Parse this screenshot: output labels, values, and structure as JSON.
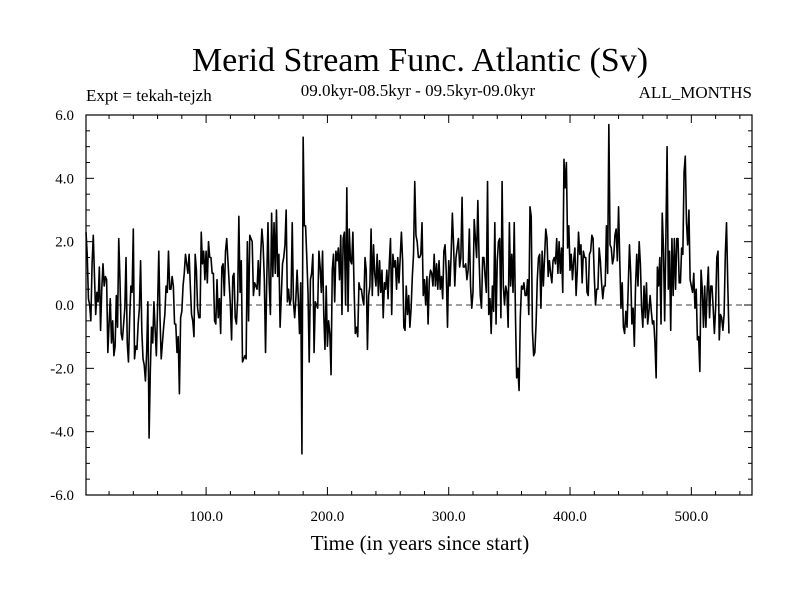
{
  "chart_data": {
    "type": "line",
    "title": "Merid Stream Func. Atlantic (Sv)",
    "subtitle": "09.0kyr-08.5kyr - 09.5kyr-09.0kyr",
    "left_label": "Expt = tekah-tejzh",
    "right_label": "ALL_MONTHS",
    "xlabel": "Time (in years since start)",
    "ylabel": "",
    "xlim": [
      1,
      550
    ],
    "ylim": [
      -6.0,
      6.0
    ],
    "x_ticks": [
      100,
      200,
      300,
      400,
      500
    ],
    "x_tick_labels": [
      "100.0",
      "200.0",
      "300.0",
      "400.0",
      "500.0"
    ],
    "y_ticks": [
      -6,
      -4,
      -2,
      0,
      2,
      4,
      6
    ],
    "y_tick_labels": [
      "-6.0",
      "-4.0",
      "-2.0",
      "0.0",
      "2.0",
      "4.0",
      "6.0"
    ],
    "x_minor_step": 20,
    "y_minor_step": 0.5,
    "zero_line": "dashed",
    "series": [
      {
        "name": "Merid Stream Func. Atlantic",
        "color": "#000000",
        "x_start": 1,
        "x_step": 1,
        "values": [
          2.3,
          1.6,
          0.2,
          0.0,
          -0.5,
          1.3,
          2.2,
          0.9,
          -0.3,
          0.4,
          0.1,
          1.2,
          -0.8,
          0.5,
          1.3,
          0.6,
          0.9,
          0.8,
          -1.5,
          -0.6,
          0.2,
          -1.2,
          -0.5,
          -1.6,
          -1.3,
          0.3,
          -0.7,
          2.1,
          0.8,
          -0.9,
          -1.1,
          -0.6,
          -0.1,
          1.5,
          -1.2,
          -1.8,
          -0.4,
          0.6,
          0.4,
          2.4,
          -1.7,
          -1.3,
          -1.4,
          -0.6,
          -0.1,
          1.4,
          -0.8,
          -1.7,
          -1.9,
          -2.4,
          -1.5,
          0.1,
          -4.2,
          -2.1,
          -0.7,
          -1.2,
          0.1,
          -0.8,
          -1.6,
          -0.1,
          1.7,
          -0.4,
          -1.7,
          -1.2,
          -0.7,
          -0.3,
          0.6,
          0.4,
          1.7,
          0.5,
          0.5,
          0.9,
          0.6,
          -0.6,
          -0.6,
          -1.5,
          -1.0,
          -2.8,
          -0.4,
          -0.2,
          0.6,
          1.0,
          1.6,
          1.3,
          1.0,
          1.6,
          0.6,
          -0.3,
          -0.5,
          -1.0,
          1.6,
          1.1,
          -0.1,
          -0.4,
          -0.4,
          2.3,
          1.3,
          1.7,
          0.8,
          1.7,
          0.7,
          2.0,
          1.5,
          1.5,
          1.0,
          1.0,
          -0.5,
          -0.6,
          0.8,
          -0.4,
          0.2,
          -0.9,
          1.2,
          1.3,
          0.3,
          1.7,
          2.1,
          1.4,
          0.7,
          0.0,
          -1.1,
          0.9,
          1.0,
          -0.4,
          -0.6,
          0.2,
          2.8,
          0.4,
          1.4,
          -1.8,
          -1.7,
          -1.6,
          -1.7,
          2.0,
          -0.5,
          2.2,
          2.1,
          2.0,
          0.3,
          0.7,
          0.6,
          0.5,
          1.4,
          0.3,
          1.6,
          2.4,
          1.9,
          0.8,
          -1.5,
          0.8,
          2.6,
          0.7,
          -0.3,
          2.9,
          0.9,
          2.6,
          1.0,
          3.0,
          0.9,
          1.6,
          -0.7,
          0.3,
          1.3,
          1.5,
          1.9,
          3.0,
          0.1,
          0.5,
          0.0,
          0.2,
          2.6,
          0.1,
          -0.4,
          0.2,
          1.1,
          0.2,
          -0.9,
          0.7,
          -4.7,
          5.3,
          2.5,
          2.5,
          1.5,
          0.4,
          -1.8,
          0.8,
          1.0,
          1.6,
          -1.5,
          0.1,
          0.0,
          -0.1,
          1.7,
          1.2,
          0.4,
          1.7,
          -0.3,
          -1.4,
          0.6,
          -1.3,
          -0.5,
          -0.9,
          -2.2,
          1.1,
          1.6,
          0.1,
          1.7,
          1.4,
          1.8,
          0.8,
          2.2,
          -0.3,
          2.1,
          2.3,
          0.0,
          3.7,
          -0.2,
          2.4,
          1.4,
          1.3,
          2.3,
          0.5,
          -0.9,
          -0.7,
          -1.0,
          0.7,
          0.5,
          0.5,
          0.2,
          0.0,
          1.5,
          1.1,
          -1.4,
          0.3,
          0.6,
          2.4,
          0.3,
          1.9,
          1.0,
          0.6,
          1.6,
          0.3,
          1.4,
          0.4,
          1.1,
          -0.4,
          0.7,
          0.5,
          1.1,
          0.2,
          1.3,
          2.1,
          -0.3,
          1.6,
          1.2,
          1.4,
          0.5,
          1.5,
          0.7,
          1.5,
          2.3,
          1.4,
          -0.7,
          -0.8,
          0.6,
          -0.3,
          0.3,
          -0.7,
          -0.1,
          0.9,
          1.6,
          3.9,
          2.2,
          2.0,
          1.5,
          1.5,
          1.6,
          2.6,
          0.3,
          0.8,
          0.0,
          0.9,
          -0.6,
          0.8,
          1.1,
          1.0,
          0.6,
          1.6,
          0.6,
          1.3,
          0.5,
          1.4,
          0.5,
          0.9,
          0.2,
          1.7,
          1.9,
          1.0,
          -0.7,
          1.4,
          0.6,
          1.6,
          2.9,
          1.9,
          0.6,
          1.5,
          1.8,
          2.1,
          1.2,
          1.5,
          3.4,
          1.2,
          1.2,
          1.3,
          0.8,
          1.1,
          2.4,
          0.6,
          -0.1,
          0.4,
          2.7,
          2.1,
          1.5,
          3.3,
          1.5,
          0.3,
          -0.1,
          1.5,
          1.5,
          0.9,
          0.4,
          3.9,
          -0.3,
          0.2,
          -0.9,
          0.6,
          -0.2,
          2.6,
          -0.6,
          1.4,
          2.0,
          2.1,
          -0.4,
          3.9,
          0.6,
          0.0,
          0.6,
          0.4,
          -0.7,
          2.6,
          0.6,
          1.6,
          0.4,
          2.6,
          -0.3,
          -2.3,
          -2.0,
          -2.7,
          -0.4,
          0.6,
          0.5,
          0.7,
          0.3,
          0.3,
          0.8,
          -0.3,
          3.1,
          2.8,
          -0.8,
          -1.6,
          -1.5,
          -0.6,
          0.8,
          1.5,
          1.6,
          -0.1,
          1.7,
          0.6,
          1.5,
          2.4,
          2.1,
          0.9,
          1.4,
          1.0,
          0.7,
          1.4,
          1.5,
          1.3,
          2.1,
          1.0,
          2.0,
          1.0,
          1.8,
          0.4,
          4.6,
          3.7,
          4.5,
          1.8,
          2.5,
          1.1,
          1.6,
          0.8,
          1.4,
          1.8,
          0.3,
          1.1,
          2.3,
          1.6,
          1.9,
          0.7,
          1.7,
          1.5,
          1.5,
          0.4,
          0.3,
          1.6,
          1.7,
          2.2,
          2.1,
          0.9,
          0.0,
          0.5,
          0.5,
          1.8,
          1.4,
          0.7,
          0.2,
          0.6,
          0.6,
          2.5,
          1.0,
          5.7,
          1.9,
          1.8,
          1.3,
          1.5,
          2.2,
          2.4,
          1.4,
          3.1,
          1.4,
          -0.1,
          0.7,
          -0.7,
          -0.9,
          -0.2,
          -0.7,
          0.6,
          1.9,
          1.0,
          -0.6,
          -0.1,
          -1.3,
          0.6,
          1.6,
          0.6,
          2.0,
          1.3,
          -0.1,
          -0.7,
          0.6,
          -0.4,
          0.7,
          -0.6,
          -0.2,
          0.3,
          -0.2,
          -0.6,
          -0.5,
          -1.2,
          -2.3,
          1.2,
          0.6,
          1.5,
          -0.6,
          2.9,
          1.8,
          -0.5,
          2.1,
          5.0,
          0.5,
          1.7,
          -0.8,
          2.1,
          0.3,
          2.1,
          0.5,
          2.1,
          2.1,
          0.7,
          0.7,
          1.8,
          1.6,
          4.2,
          4.7,
          2.6,
          1.9,
          3.0,
          0.8,
          0.6,
          0.4,
          1.0,
          -0.1,
          0.5,
          -1.1,
          -1.0,
          -2.1,
          1.1,
          0.5,
          -0.7,
          0.6,
          -0.7,
          0.4,
          1.2,
          -0.4,
          0.6,
          0.6,
          -0.1,
          -0.9,
          -0.1,
          1.5,
          1.7,
          -1.1,
          -0.3,
          -0.4,
          -0.8,
          -0.3,
          1.6,
          2.6,
          0.7,
          -0.9
        ]
      }
    ]
  }
}
